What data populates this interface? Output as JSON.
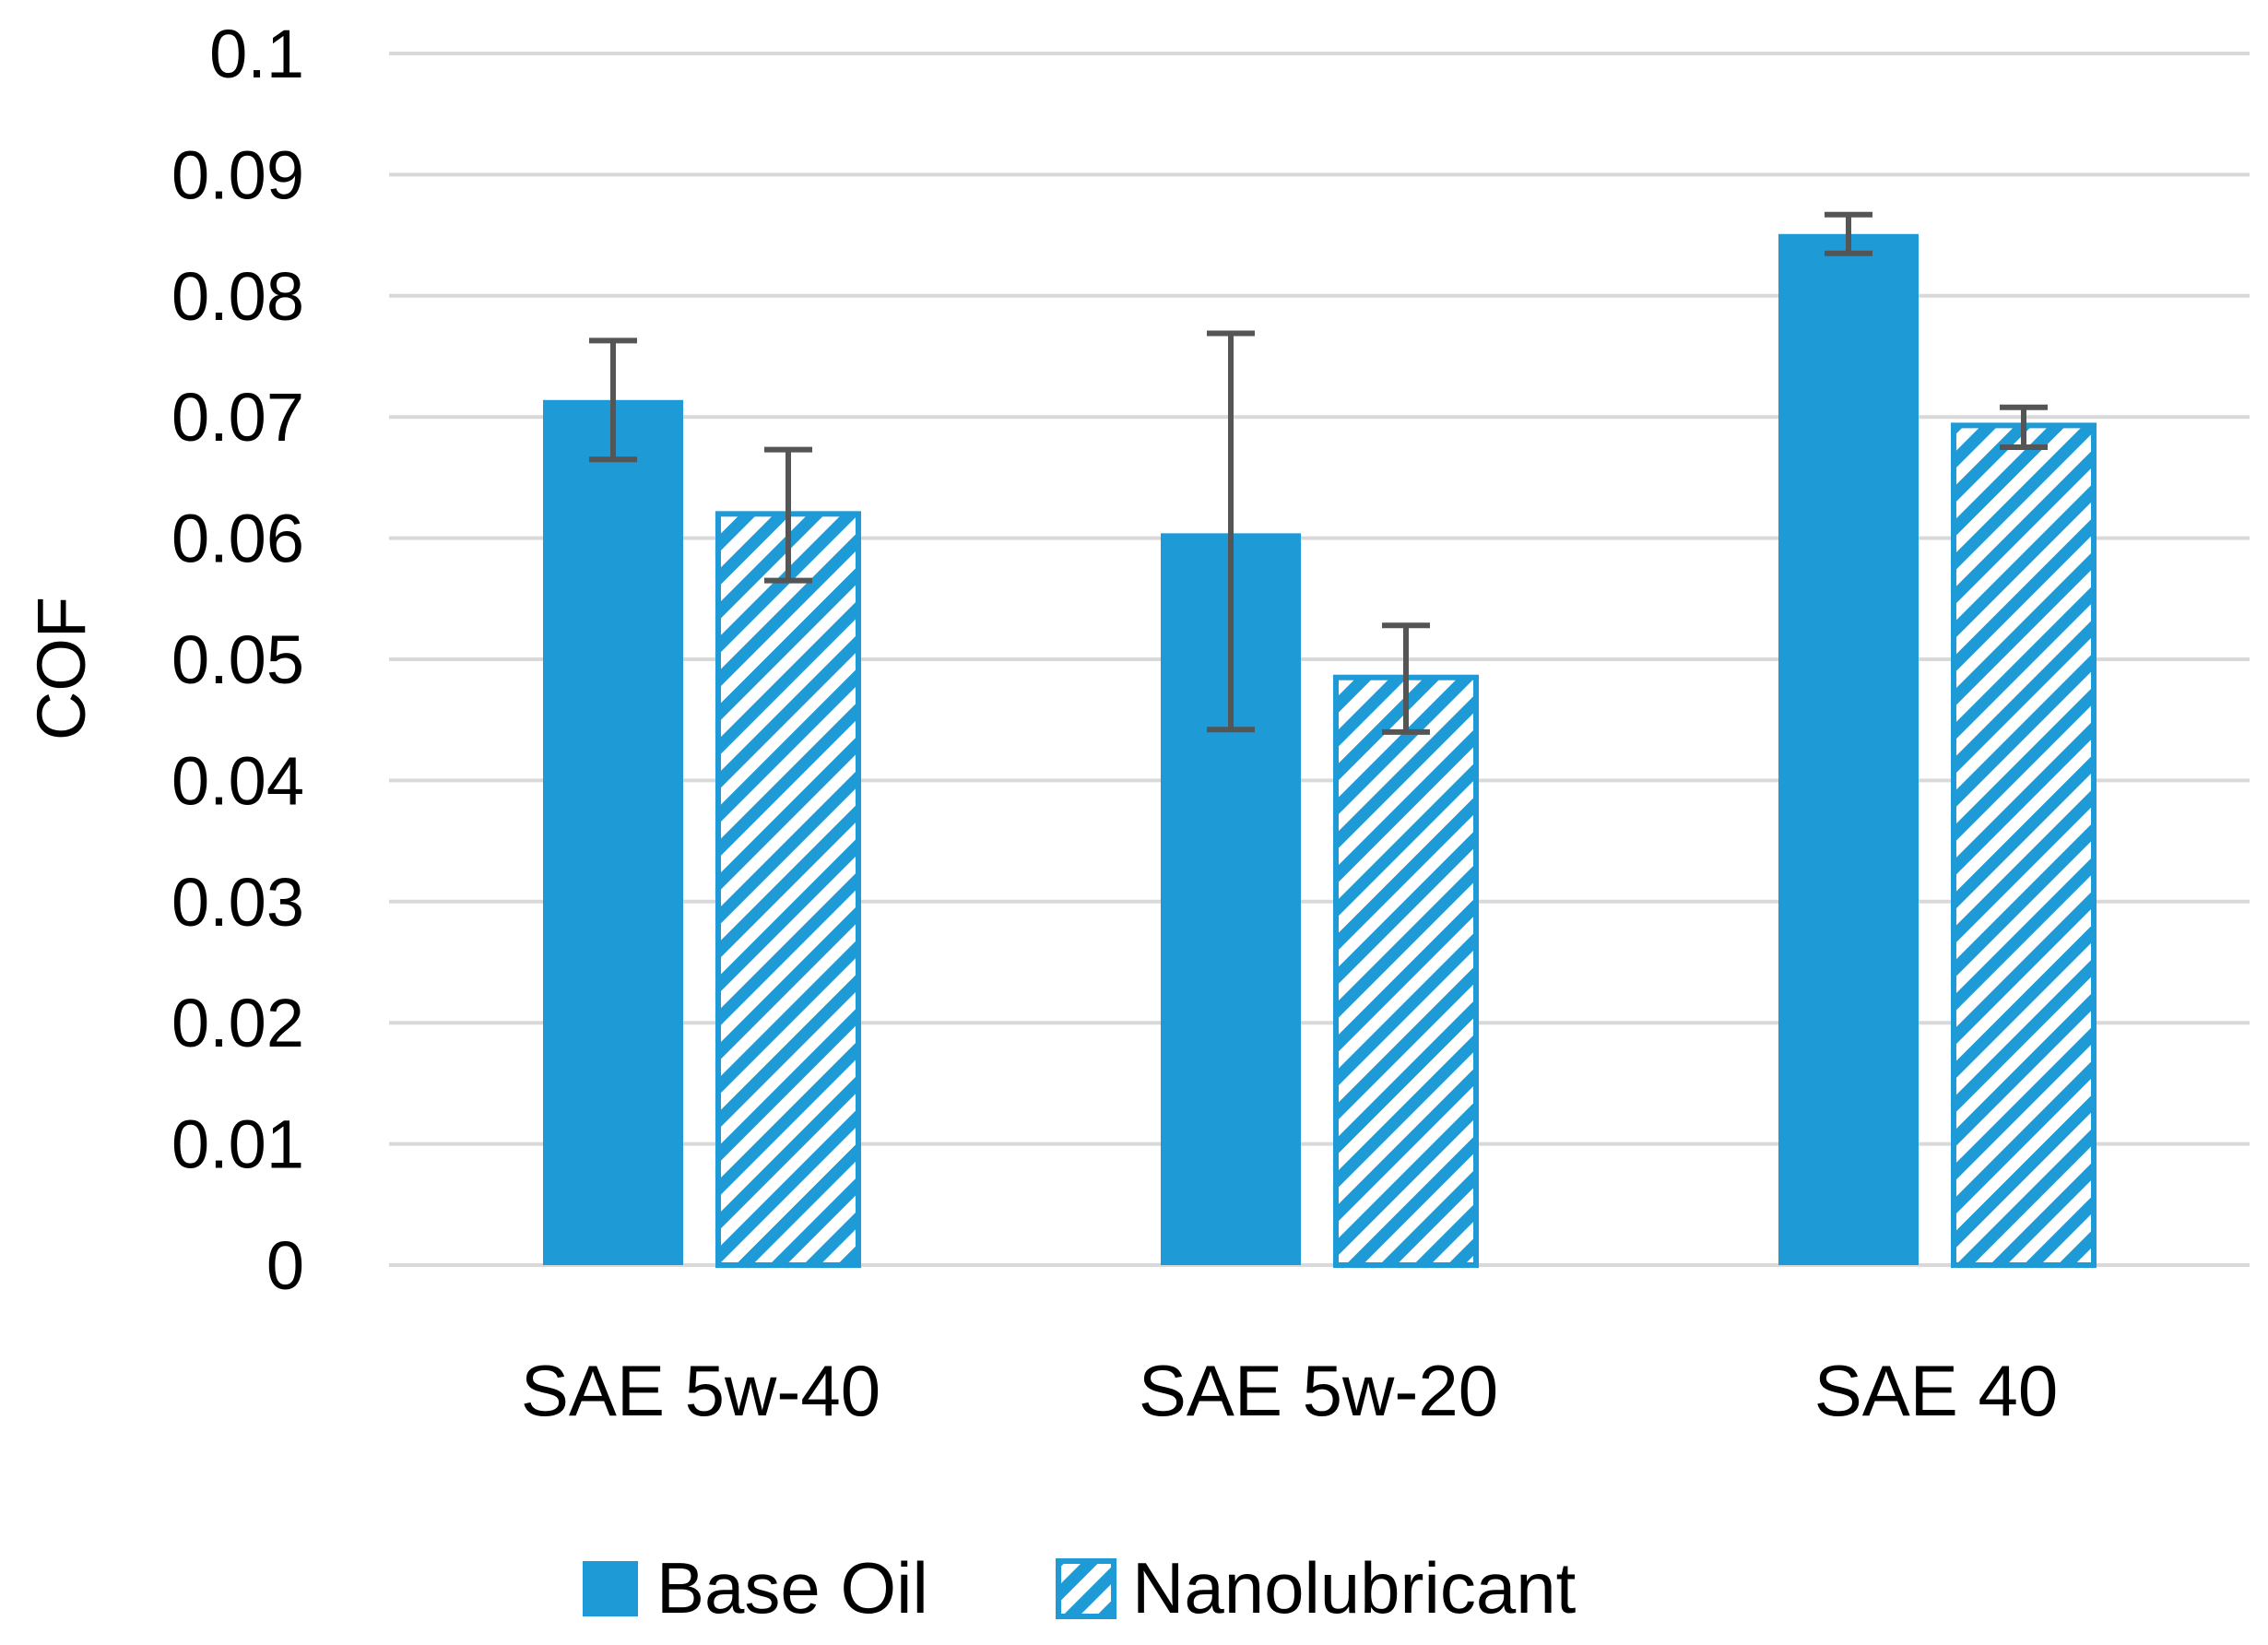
{
  "chart_data": {
    "type": "bar",
    "title": "",
    "xlabel": "",
    "ylabel": "COF",
    "ylim": [
      0,
      0.1
    ],
    "yticks": [
      "0",
      "0.01",
      "0.02",
      "0.03",
      "0.04",
      "0.05",
      "0.06",
      "0.07",
      "0.08",
      "0.09",
      "0.1"
    ],
    "grid": true,
    "legend_position": "bottom",
    "categories": [
      "SAE 5w-40",
      "SAE 5w-20",
      "SAE 40"
    ],
    "series": [
      {
        "name": "Base Oil",
        "fill": "solid",
        "color": "#1E9AD6",
        "values": [
          0.0714,
          0.0604,
          0.0851
        ],
        "error_low": [
          0.0665,
          0.0442,
          0.0835
        ],
        "error_high": [
          0.0763,
          0.0769,
          0.0867
        ]
      },
      {
        "name": "Nanolubricant",
        "fill": "hatched",
        "color": "#1E9AD6",
        "values": [
          0.062,
          0.0485,
          0.0693
        ],
        "error_low": [
          0.0565,
          0.044,
          0.0675
        ],
        "error_high": [
          0.0673,
          0.0528,
          0.0708
        ]
      }
    ],
    "colors": {
      "grid": "#D9D9D9",
      "error_bar": "#555555",
      "hatch_bg": "#FFFFFF"
    }
  }
}
